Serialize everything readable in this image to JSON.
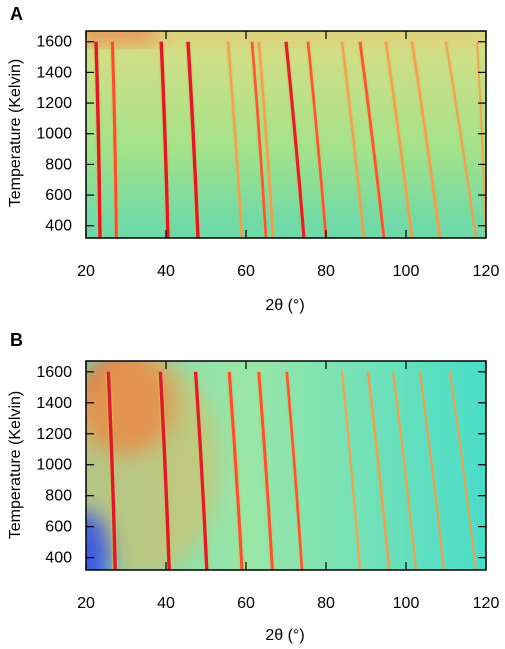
{
  "chart_data": [
    {
      "panel": "A",
      "type": "heatmap",
      "xlabel": "2θ (°)",
      "ylabel": "Temperature (Kelvin)",
      "xlim": [
        20,
        120
      ],
      "ylim": [
        320,
        1670
      ],
      "xticks": [
        20,
        40,
        60,
        80,
        100,
        120
      ],
      "yticks": [
        400,
        600,
        800,
        1000,
        1200,
        1400,
        1600
      ],
      "colormap": [
        "#4fa2f5",
        "#39d2e8",
        "#7fe6a6",
        "#c7e17e",
        "#f7a64d",
        "#ef4e2e",
        "#d11f2c"
      ],
      "background_gradient": [
        {
          "t": 400,
          "color": "#6fd9a8"
        },
        {
          "t": 900,
          "color": "#a4e28a"
        },
        {
          "t": 1600,
          "color": "#d7de86"
        }
      ],
      "hot_band": {
        "t_min": 1600,
        "t_max": 1670,
        "x_min": 20,
        "x_max": 38,
        "color": "#ef6a3d"
      },
      "peaks": [
        {
          "two_theta_low": 23.5,
          "two_theta_high": 22.5,
          "t_top": 1600,
          "intensity": 1.0
        },
        {
          "two_theta_low": 27.6,
          "two_theta_high": 26.6,
          "t_top": 1600,
          "intensity": 0.85
        },
        {
          "two_theta_low": 40.5,
          "two_theta_high": 38.8,
          "t_top": 1600,
          "intensity": 1.0
        },
        {
          "two_theta_low": 48.0,
          "two_theta_high": 45.5,
          "t_top": 1600,
          "intensity": 1.0
        },
        {
          "two_theta_low": 59.0,
          "two_theta_high": 55.5,
          "t_top": 1600,
          "intensity": 0.55
        },
        {
          "two_theta_low": 65.0,
          "two_theta_high": 61.5,
          "t_top": 1600,
          "intensity": 0.7
        },
        {
          "two_theta_low": 66.8,
          "two_theta_high": 63.2,
          "t_top": 1600,
          "intensity": 0.6
        },
        {
          "two_theta_low": 74.5,
          "two_theta_high": 70.0,
          "t_top": 1600,
          "intensity": 0.9
        },
        {
          "two_theta_low": 80.0,
          "two_theta_high": 75.5,
          "t_top": 1600,
          "intensity": 0.7
        },
        {
          "two_theta_low": 89.5,
          "two_theta_high": 84.0,
          "t_top": 1600,
          "intensity": 0.55
        },
        {
          "two_theta_low": 94.5,
          "two_theta_high": 88.5,
          "t_top": 1600,
          "intensity": 0.75
        },
        {
          "two_theta_low": 101.5,
          "two_theta_high": 95.0,
          "t_top": 1600,
          "intensity": 0.6
        },
        {
          "two_theta_low": 108.5,
          "two_theta_high": 101.5,
          "t_top": 1600,
          "intensity": 0.6
        },
        {
          "two_theta_low": 117.5,
          "two_theta_high": 110.0,
          "t_top": 1600,
          "intensity": 0.45
        },
        {
          "two_theta_low": 120.0,
          "two_theta_high": 117.8,
          "t_top": 1600,
          "intensity": 0.35
        }
      ]
    },
    {
      "panel": "B",
      "type": "heatmap",
      "xlabel": "2θ (°)",
      "ylabel": "Temperature (Kelvin)",
      "xlim": [
        20,
        120
      ],
      "ylim": [
        320,
        1670
      ],
      "xticks": [
        20,
        40,
        60,
        80,
        100,
        120
      ],
      "yticks": [
        400,
        600,
        800,
        1000,
        1200,
        1400,
        1600
      ],
      "colormap": [
        "#3a5cf0",
        "#39c4ec",
        "#7fe8b4",
        "#c7e17e",
        "#f7a64d",
        "#ef4e2e",
        "#d11f2c"
      ],
      "background_gradient": [
        {
          "x": 20,
          "color": "#7ad7b9"
        },
        {
          "x": 60,
          "color": "#9be6a6"
        },
        {
          "x": 120,
          "color": "#49dcc9"
        }
      ],
      "hot_spot": {
        "x_center": 30,
        "t_center": 1400,
        "x_radius": 12,
        "t_radius": 330,
        "color": "#f0582f"
      },
      "cold_spot": {
        "x_center": 20,
        "t_center": 400,
        "x_radius": 6,
        "t_radius": 300,
        "color": "#3850e6"
      },
      "peaks": [
        {
          "two_theta_low": 27.3,
          "two_theta_high": 25.6,
          "t_top": 1600,
          "intensity": 1.0
        },
        {
          "two_theta_low": 40.8,
          "two_theta_high": 38.6,
          "t_top": 1600,
          "intensity": 1.0
        },
        {
          "two_theta_low": 50.2,
          "two_theta_high": 47.4,
          "t_top": 1600,
          "intensity": 0.95
        },
        {
          "two_theta_low": 59.0,
          "two_theta_high": 55.8,
          "t_top": 1600,
          "intensity": 0.85
        },
        {
          "two_theta_low": 66.6,
          "two_theta_high": 63.2,
          "t_top": 1600,
          "intensity": 0.8
        },
        {
          "two_theta_low": 74.0,
          "two_theta_high": 70.2,
          "t_top": 1600,
          "intensity": 0.7
        },
        {
          "two_theta_low": 88.5,
          "two_theta_high": 84.0,
          "t_top": 1600,
          "intensity": 0.4
        },
        {
          "two_theta_low": 95.8,
          "two_theta_high": 90.5,
          "t_top": 1600,
          "intensity": 0.5
        },
        {
          "two_theta_low": 102.5,
          "two_theta_high": 96.8,
          "t_top": 1600,
          "intensity": 0.4
        },
        {
          "two_theta_low": 109.5,
          "two_theta_high": 103.5,
          "t_top": 1600,
          "intensity": 0.4
        },
        {
          "two_theta_low": 117.5,
          "two_theta_high": 111.0,
          "t_top": 1600,
          "intensity": 0.35
        }
      ]
    }
  ]
}
